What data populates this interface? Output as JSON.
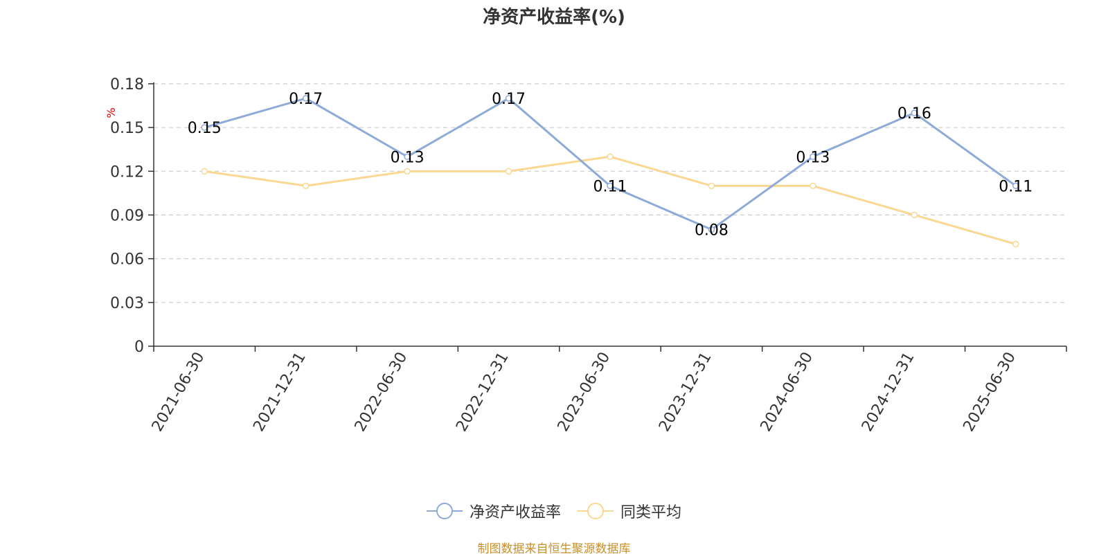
{
  "title": "净资产收益率(%)",
  "source_text": "制图数据来自恒生聚源数据库",
  "colors": {
    "series1": "#8eaad6",
    "series2": "#fad894",
    "grid": "#cccccc",
    "axis": "#333333",
    "unit": "#e00000"
  },
  "chart_data": {
    "type": "line",
    "title": "净资产收益率(%)",
    "ylabel": "%",
    "ylim": [
      0,
      0.18
    ],
    "yticks": [
      0,
      0.03,
      0.06,
      0.09,
      0.12,
      0.15,
      0.18
    ],
    "ytick_labels": [
      "0",
      "0.03",
      "0.06",
      "0.09",
      "0.12",
      "0.15",
      "0.18"
    ],
    "grid": true,
    "legend_position": "bottom-center",
    "categories": [
      "2021-06-30",
      "2021-12-31",
      "2022-06-30",
      "2022-12-31",
      "2023-06-30",
      "2023-12-31",
      "2024-06-30",
      "2024-12-31",
      "2025-06-30"
    ],
    "series": [
      {
        "name": "净资产收益率",
        "values": [
          0.15,
          0.17,
          0.13,
          0.17,
          0.11,
          0.08,
          0.13,
          0.16,
          0.11
        ],
        "labels": [
          "0.15",
          "0.17",
          "0.13",
          "0.17",
          "0.11",
          "0.08",
          "0.13",
          "0.16",
          "0.11"
        ],
        "color": "#8eaad6"
      },
      {
        "name": "同类平均",
        "values": [
          0.12,
          0.11,
          0.12,
          0.12,
          0.13,
          0.11,
          0.11,
          0.09,
          0.07
        ],
        "color": "#fad894"
      }
    ]
  }
}
